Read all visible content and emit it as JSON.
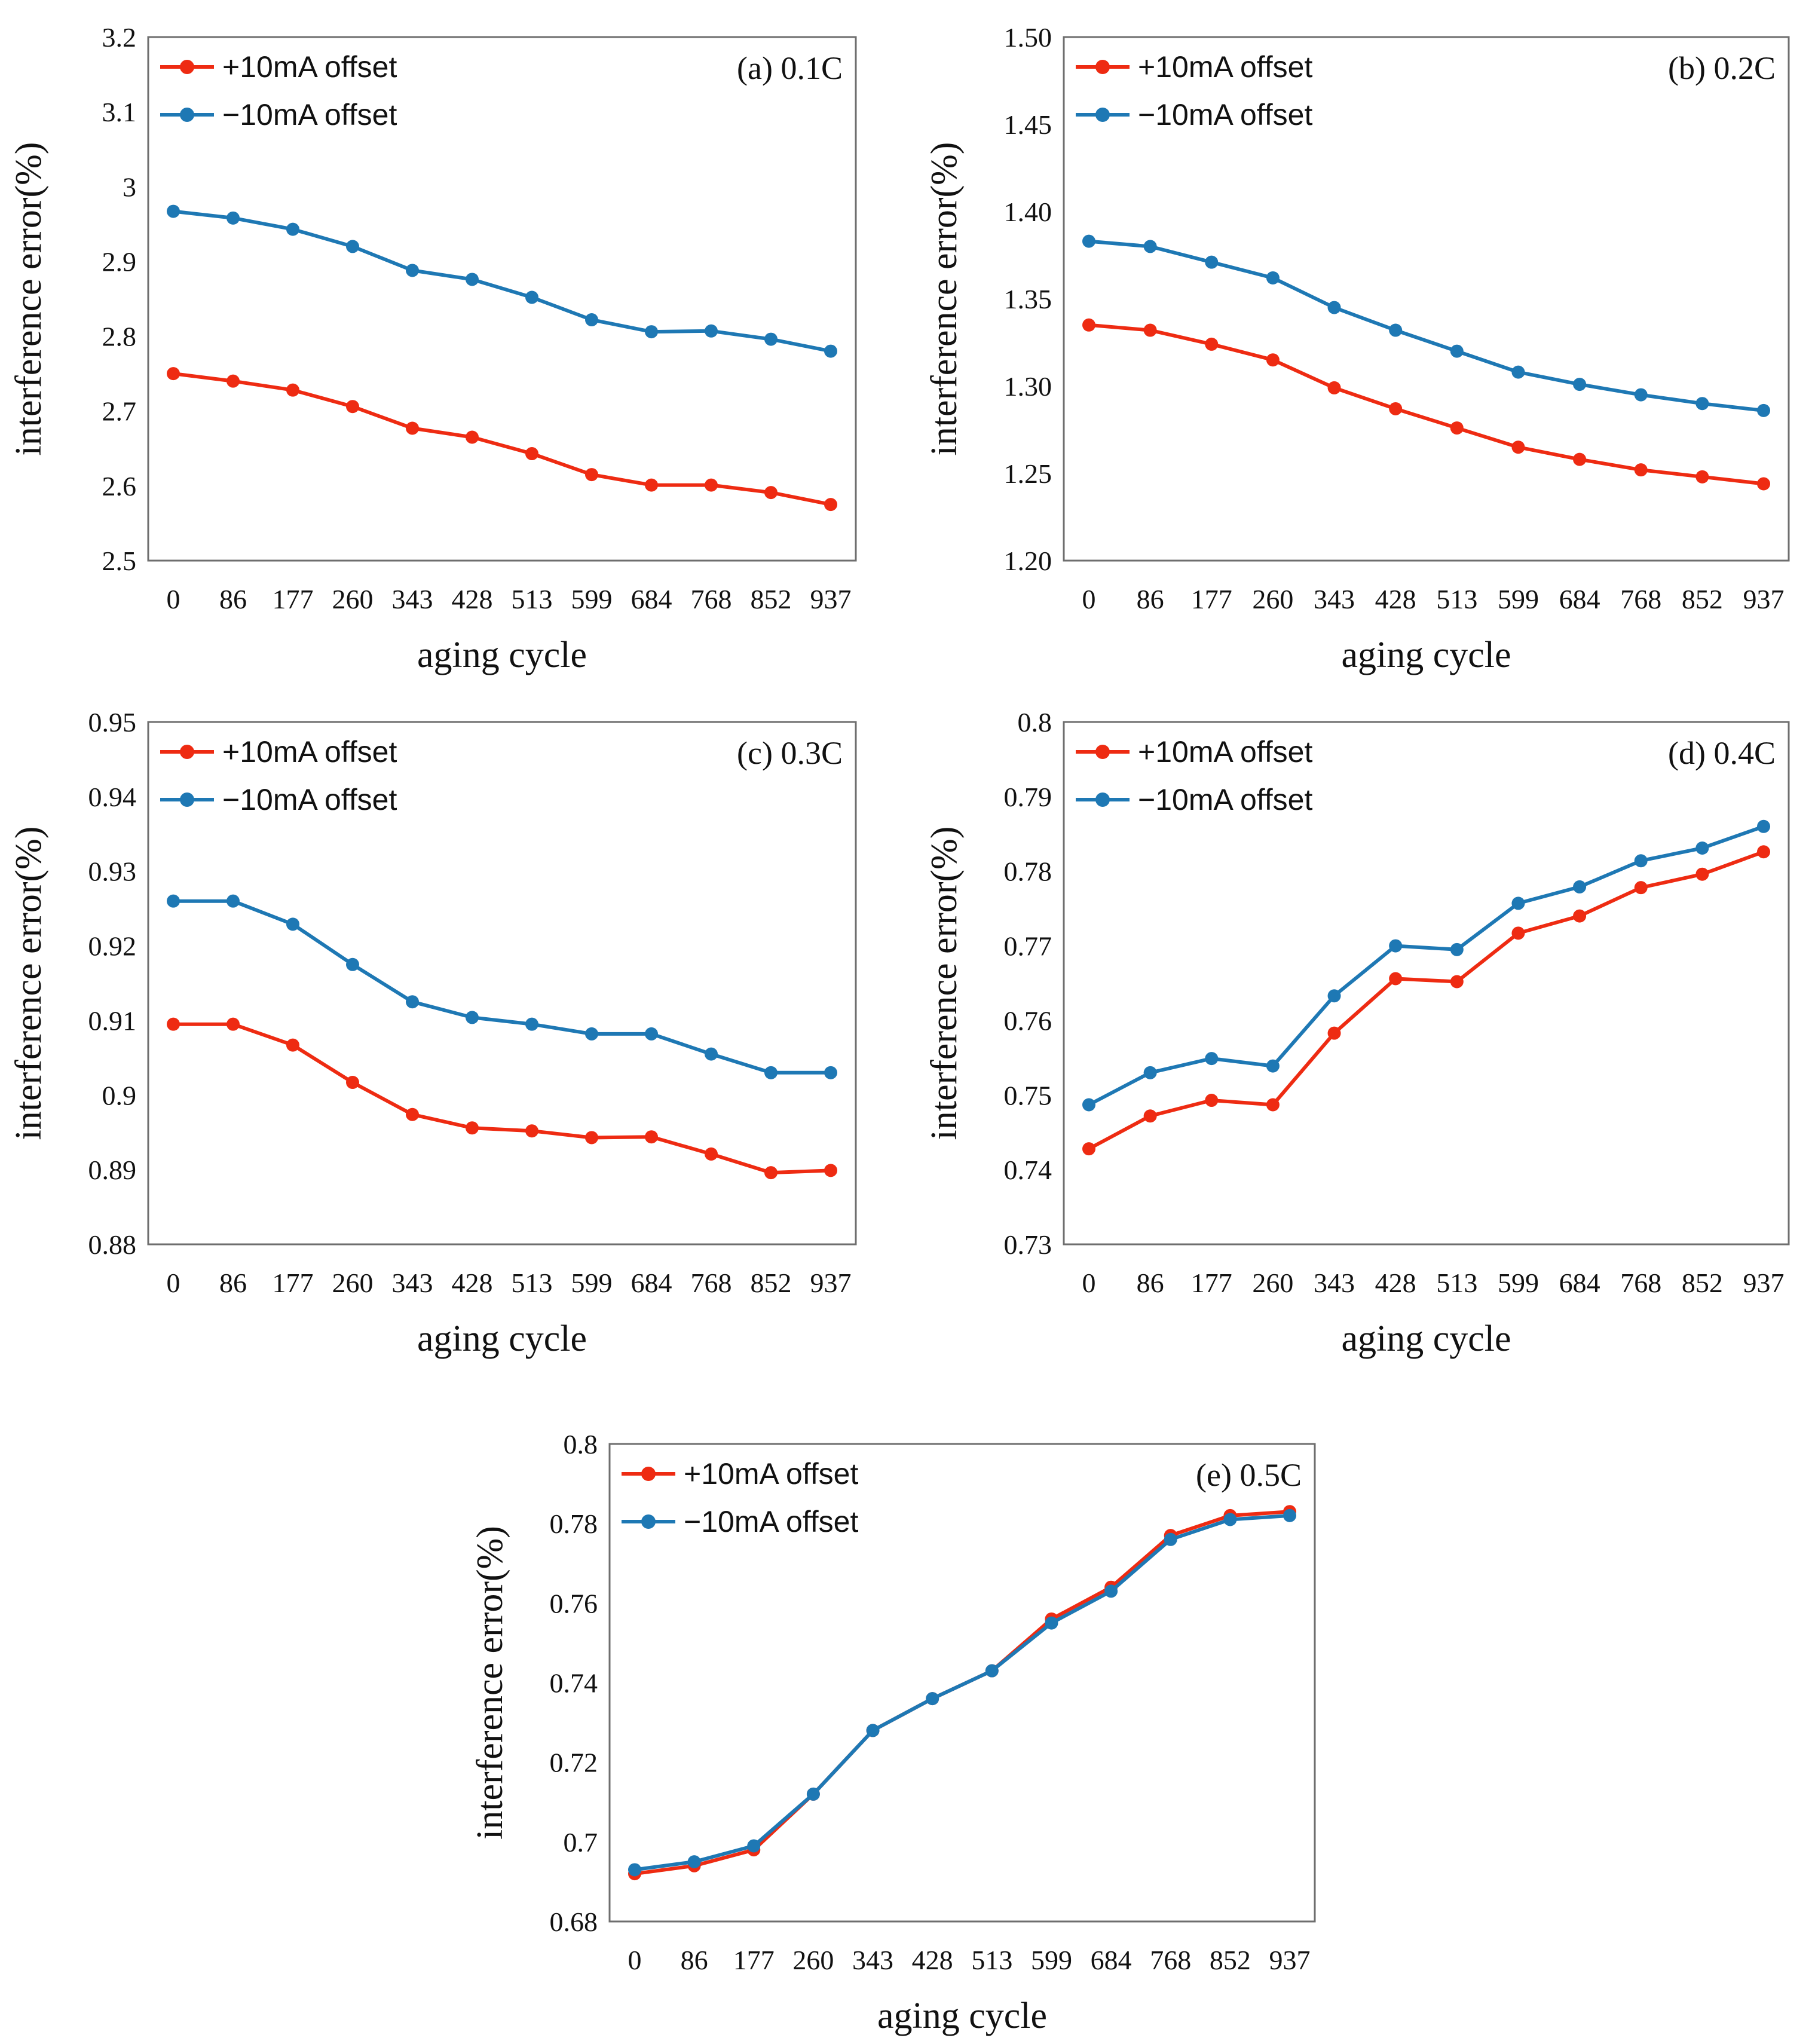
{
  "colors": {
    "series_pos": "#ee2b12",
    "series_neg": "#1e78b4",
    "frame": "#6e6e6e"
  },
  "chart_data": [
    {
      "type": "line",
      "title": "(a) 0.1C",
      "xlabel": "aging cycle",
      "ylabel": "interference error(%)",
      "categories": [
        "0",
        "86",
        "177",
        "260",
        "343",
        "428",
        "513",
        "599",
        "684",
        "768",
        "852",
        "937"
      ],
      "ylim": [
        2.5,
        3.2
      ],
      "yticks": [
        "2.5",
        "2.6",
        "2.7",
        "2.8",
        "2.9",
        "3",
        "3.1",
        "3.2"
      ],
      "legend": "top-left",
      "series": [
        {
          "name": "+10mA offset",
          "values": [
            2.75,
            2.74,
            2.728,
            2.706,
            2.677,
            2.665,
            2.643,
            2.615,
            2.601,
            2.601,
            2.591,
            2.575
          ]
        },
        {
          "name": "−10mA offset",
          "values": [
            2.967,
            2.958,
            2.943,
            2.92,
            2.888,
            2.876,
            2.852,
            2.822,
            2.806,
            2.807,
            2.796,
            2.78
          ]
        }
      ]
    },
    {
      "type": "line",
      "title": "(b) 0.2C",
      "xlabel": "aging cycle",
      "ylabel": "interference error(%)",
      "categories": [
        "0",
        "86",
        "177",
        "260",
        "343",
        "428",
        "513",
        "599",
        "684",
        "768",
        "852",
        "937"
      ],
      "ylim": [
        1.2,
        1.5
      ],
      "yticks": [
        "1.20",
        "1.25",
        "1.30",
        "1.35",
        "1.40",
        "1.45",
        "1.50"
      ],
      "legend": "top-left",
      "series": [
        {
          "name": "+10mA offset",
          "values": [
            1.335,
            1.332,
            1.324,
            1.315,
            1.299,
            1.287,
            1.276,
            1.265,
            1.258,
            1.252,
            1.248,
            1.244
          ]
        },
        {
          "name": "−10mA offset",
          "values": [
            1.383,
            1.38,
            1.371,
            1.362,
            1.345,
            1.332,
            1.32,
            1.308,
            1.301,
            1.295,
            1.29,
            1.286
          ]
        }
      ]
    },
    {
      "type": "line",
      "title": "(c) 0.3C",
      "xlabel": "aging cycle",
      "ylabel": "interference error(%)",
      "categories": [
        "0",
        "86",
        "177",
        "260",
        "343",
        "428",
        "513",
        "599",
        "684",
        "768",
        "852",
        "937"
      ],
      "ylim": [
        0.88,
        0.95
      ],
      "yticks": [
        "0.88",
        "0.89",
        "0.9",
        "0.91",
        "0.92",
        "0.93",
        "0.94",
        "0.95"
      ],
      "legend": "top-left",
      "series": [
        {
          "name": "+10mA offset",
          "values": [
            0.9095,
            0.9095,
            0.9067,
            0.9017,
            0.8974,
            0.8956,
            0.8952,
            0.8943,
            0.8944,
            0.8921,
            0.8896,
            0.8899
          ]
        },
        {
          "name": "−10mA offset",
          "values": [
            0.926,
            0.926,
            0.9229,
            0.9175,
            0.9125,
            0.9104,
            0.9095,
            0.9082,
            0.9082,
            0.9055,
            0.903,
            0.903
          ]
        }
      ]
    },
    {
      "type": "line",
      "title": "(d) 0.4C",
      "xlabel": "aging cycle",
      "ylabel": "interference error(%)",
      "categories": [
        "0",
        "86",
        "177",
        "260",
        "343",
        "428",
        "513",
        "599",
        "684",
        "768",
        "852",
        "937"
      ],
      "ylim": [
        0.73,
        0.8
      ],
      "yticks": [
        "0.73",
        "0.74",
        "0.75",
        "0.76",
        "0.77",
        "0.78",
        "0.79",
        "0.8"
      ],
      "legend": "top-left",
      "series": [
        {
          "name": "+10mA offset",
          "values": [
            0.7428,
            0.7472,
            0.7493,
            0.7487,
            0.7583,
            0.7656,
            0.7652,
            0.7717,
            0.774,
            0.7778,
            0.7796,
            0.7826
          ]
        },
        {
          "name": "−10mA offset",
          "values": [
            0.7487,
            0.753,
            0.7549,
            0.7539,
            0.7633,
            0.77,
            0.7695,
            0.7757,
            0.7779,
            0.7814,
            0.7831,
            0.786
          ]
        }
      ]
    },
    {
      "type": "line",
      "title": "(e) 0.5C",
      "xlabel": "aging cycle",
      "ylabel": "interference error(%)",
      "categories": [
        "0",
        "86",
        "177",
        "260",
        "343",
        "428",
        "513",
        "599",
        "684",
        "768",
        "852",
        "937"
      ],
      "ylim": [
        0.68,
        0.8
      ],
      "yticks": [
        "0.68",
        "0.7",
        "0.72",
        "0.74",
        "0.76",
        "0.78",
        "0.8"
      ],
      "legend": "top-left",
      "series": [
        {
          "name": "+10mA offset",
          "values": [
            0.692,
            0.694,
            0.698,
            0.712,
            0.728,
            0.736,
            0.743,
            0.756,
            0.764,
            0.777,
            0.782,
            0.783
          ]
        },
        {
          "name": "−10mA offset",
          "values": [
            0.693,
            0.695,
            0.699,
            0.712,
            0.728,
            0.736,
            0.743,
            0.755,
            0.763,
            0.776,
            0.781,
            0.782
          ]
        }
      ]
    }
  ]
}
